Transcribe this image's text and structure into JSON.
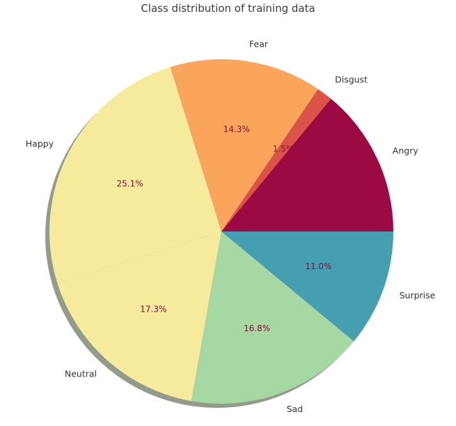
{
  "chart_data": {
    "type": "pie",
    "title": "Class distribution of training data",
    "start_angle_deg": 0,
    "direction": "counterclockwise",
    "shadow": true,
    "slices": [
      {
        "label": "Angry",
        "value": 14.0,
        "pct_label": "",
        "color": "#9b0a42"
      },
      {
        "label": "Disgust",
        "value": 1.5,
        "pct_label": "1.5%",
        "color": "#db5346"
      },
      {
        "label": "Fear",
        "value": 14.3,
        "pct_label": "14.3%",
        "color": "#faa45c"
      },
      {
        "label": "Happy",
        "value": 25.1,
        "pct_label": "25.1%",
        "color": "#f6ea9c"
      },
      {
        "label": "Neutral",
        "value": 17.3,
        "pct_label": "17.3%",
        "color": "#f6ea9c"
      },
      {
        "label": "Sad",
        "value": 16.8,
        "pct_label": "16.8%",
        "color": "#a6d8a4"
      },
      {
        "label": "Surprise",
        "value": 11.0,
        "pct_label": "11.0%",
        "color": "#469eb1"
      }
    ]
  }
}
